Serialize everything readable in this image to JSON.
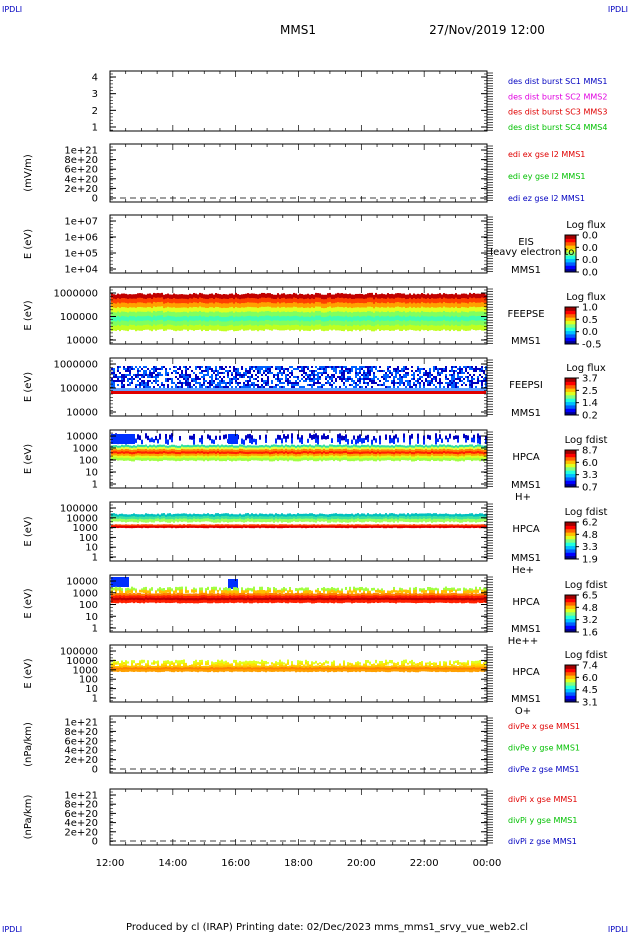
{
  "corner_marks": [
    "IPDLI",
    "IPDLI",
    "IPDLI",
    "IPDLI"
  ],
  "header": {
    "title": "MMS1",
    "datetime": "27/Nov/2019 12:00"
  },
  "footer": {
    "text": "Produced by cl (IRAP)   Printing date: 02/Dec/2023   mms_mms1_srvy_vue_web2.cl"
  },
  "chart_data": [
    {
      "type": "line",
      "ylabel": "",
      "yticks": [
        "4",
        "3",
        "2",
        "1"
      ],
      "legend": [
        {
          "label": "des dist burst SC1 MMS1",
          "color": "#0000c0"
        },
        {
          "label": "des dist burst SC2 MMS2",
          "color": "#e000e0"
        },
        {
          "label": "des dist burst SC3 MMS3",
          "color": "#e00000"
        },
        {
          "label": "des dist burst SC4 MMS4",
          "color": "#00c000"
        }
      ],
      "series": []
    },
    {
      "type": "line",
      "ylabel": "(mV/m)",
      "yticks": [
        "1e+21",
        "8e+20",
        "6e+20",
        "4e+20",
        "2e+20",
        "0"
      ],
      "zero_dashed": true,
      "legend": [
        {
          "label": "edi ex gse l2 MMS1",
          "color": "#e00000"
        },
        {
          "label": "edi ey gse l2 MMS1",
          "color": "#00c000"
        },
        {
          "label": "edi ez gse l2 MMS1",
          "color": "#0000c0"
        }
      ],
      "series": []
    },
    {
      "type": "heatmap",
      "ylabel": "E (eV)",
      "yticks": [
        "1e+07",
        "1e+06",
        "1e+05",
        "1e+04"
      ],
      "instrument": "EIS",
      "spacecraft": "MMS1",
      "overlay_text": "Heavy electron to",
      "colorbar": {
        "title": "Log flux",
        "ticks": [
          "0.0",
          "0.0",
          "0.0",
          "0.0"
        ]
      },
      "data": "empty"
    },
    {
      "type": "heatmap",
      "ylabel": "E (eV)",
      "yticks": [
        "1000000",
        "100000",
        "10000"
      ],
      "instrument": "FEEPSE",
      "spacecraft": "MMS1",
      "colorbar": {
        "title": "Log flux",
        "ticks": [
          "1.0",
          "0.5",
          "0.0",
          "-0.5"
        ]
      },
      "data": "continuous electron flux from ~30 keV to ~1 MeV, red near the top, green/cyan below"
    },
    {
      "type": "heatmap",
      "ylabel": "E (eV)",
      "yticks": [
        "1000000",
        "100000",
        "10000"
      ],
      "instrument": "FEEPSI",
      "spacecraft": "MMS1",
      "colorbar": {
        "title": "Log flux",
        "ticks": [
          "3.7",
          "2.5",
          "1.4",
          "0.2"
        ]
      },
      "data": "blue band ~100-300 keV with a red line at ~60 keV"
    },
    {
      "type": "heatmap",
      "ylabel": "E (eV)",
      "yticks": [
        "10000",
        "1000",
        "100",
        "10",
        "1"
      ],
      "instrument": "HPCA",
      "spacecraft": "MMS1",
      "species": "H+",
      "colorbar": {
        "title": "Log fdist",
        "ticks": [
          "8.7",
          "6.0",
          "3.3",
          "0.7"
        ]
      },
      "data": "red band near 500 eV, yellow/green down to ~100 eV, blue enhancements above 1 keV"
    },
    {
      "type": "heatmap",
      "ylabel": "E (eV)",
      "yticks": [
        "100000",
        "10000",
        "1000",
        "100",
        "10",
        "1"
      ],
      "instrument": "HPCA",
      "spacecraft": "MMS1",
      "species": "He+",
      "colorbar": {
        "title": "Log fdist",
        "ticks": [
          "6.2",
          "4.8",
          "3.3",
          "1.9"
        ]
      },
      "data": "red line near 800 eV, cyan/green band 2-4 keV"
    },
    {
      "type": "heatmap",
      "ylabel": "E (eV)",
      "yticks": [
        "10000",
        "1000",
        "100",
        "10",
        "1"
      ],
      "instrument": "HPCA",
      "spacecraft": "MMS1",
      "species": "He++",
      "colorbar": {
        "title": "Log fdist",
        "ticks": [
          "6.5",
          "4.8",
          "3.2",
          "1.6"
        ]
      },
      "data": "red band 500-1500 eV, blue patches at ~5 keV"
    },
    {
      "type": "heatmap",
      "ylabel": "E (eV)",
      "yticks": [
        "100000",
        "10000",
        "1000",
        "100",
        "10",
        "1"
      ],
      "instrument": "HPCA",
      "spacecraft": "MMS1",
      "species": "O+",
      "colorbar": {
        "title": "Log fdist",
        "ticks": [
          "7.4",
          "6.0",
          "4.5",
          "3.1"
        ]
      },
      "data": "orange band near 700 eV with yellow speckle above"
    },
    {
      "type": "line",
      "ylabel": "(nPa/km)",
      "yticks": [
        "1e+21",
        "8e+20",
        "6e+20",
        "4e+20",
        "2e+20",
        "0"
      ],
      "zero_dashed": true,
      "legend": [
        {
          "label": "divPe x gse MMS1",
          "color": "#e00000"
        },
        {
          "label": "divPe y gse MMS1",
          "color": "#00c000"
        },
        {
          "label": "divPe z gse MMS1",
          "color": "#0000c0"
        }
      ],
      "series": []
    },
    {
      "type": "line",
      "ylabel": "(nPa/km)",
      "yticks": [
        "1e+21",
        "8e+20",
        "6e+20",
        "4e+20",
        "2e+20",
        "0"
      ],
      "zero_dashed": true,
      "legend": [
        {
          "label": "divPi x gse MMS1",
          "color": "#e00000"
        },
        {
          "label": "divPi y gse MMS1",
          "color": "#00c000"
        },
        {
          "label": "divPi z gse MMS1",
          "color": "#0000c0"
        }
      ],
      "series": []
    }
  ],
  "time_axis": {
    "ticks": [
      "12:00",
      "14:00",
      "16:00",
      "18:00",
      "20:00",
      "22:00",
      "00:00"
    ]
  }
}
